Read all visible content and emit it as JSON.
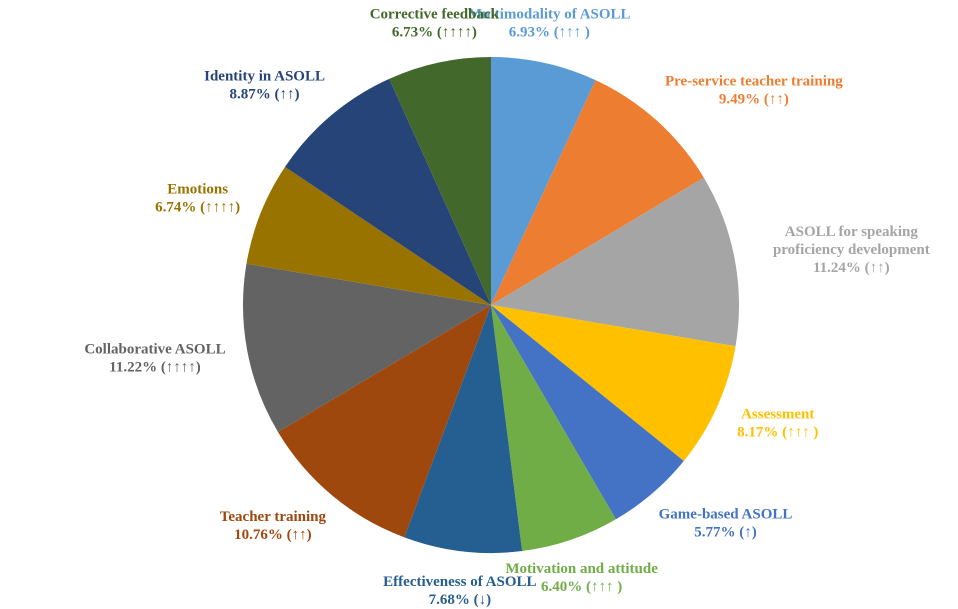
{
  "chart_data": {
    "type": "pie",
    "categories": [
      "Multimodality of ASOLL",
      "Pre-service teacher training",
      "ASOLL for speaking proficiency development",
      "Assessment",
      "Game-based ASOLL",
      "Motivation and attitude",
      "Effectiveness of ASOLL",
      "Teacher training",
      "Collaborative ASOLL",
      "Emotions",
      "Identity in ASOLL",
      "Corrective feedback"
    ],
    "values": [
      6.93,
      9.49,
      11.24,
      8.17,
      5.77,
      6.4,
      7.68,
      10.76,
      11.22,
      6.74,
      8.87,
      6.73
    ],
    "value_labels": [
      "6.93% (↑↑↑ )",
      "9.49% (↑↑)",
      "11.24% (↑↑)",
      "8.17% (↑↑↑ )",
      "5.77% (↑)",
      "6.40% (↑↑↑ )",
      "7.68% (↓)",
      "10.76% (↑↑)",
      "11.22% (↑↑↑↑)",
      "6.74% (↑↑↑↑)",
      "8.87% (↑↑)",
      "6.73% (↑↑↑↑)"
    ],
    "colors": [
      "#5b9bd5",
      "#ed7d31",
      "#a5a5a5",
      "#ffc000",
      "#4472c4",
      "#70ad47",
      "#255e91",
      "#9e480e",
      "#636363",
      "#997300",
      "#264478",
      "#43682b"
    ]
  }
}
